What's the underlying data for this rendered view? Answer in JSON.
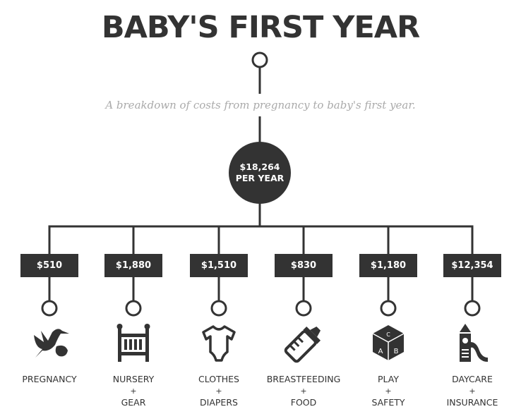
{
  "title": "BABY'S FIRST YEAR",
  "subtitle": "A breakdown of costs from pregnancy to baby's first year.",
  "total": {
    "amount": "$18,264",
    "period": "PER YEAR"
  },
  "colors": {
    "primary": "#333333",
    "subtitle": "#aaaaaa",
    "background": "#ffffff"
  },
  "categories": [
    {
      "amount": "$510",
      "line1": "PREGNANCY",
      "plus": "",
      "line2": "",
      "icon": "stork-icon"
    },
    {
      "amount": "$1,880",
      "line1": "NURSERY",
      "plus": "+",
      "line2": "GEAR",
      "icon": "crib-icon"
    },
    {
      "amount": "$1,510",
      "line1": "CLOTHES",
      "plus": "+",
      "line2": "DIAPERS",
      "icon": "onesie-icon"
    },
    {
      "amount": "$830",
      "line1": "BREASTFEEDING",
      "plus": "+",
      "line2": "FOOD",
      "icon": "baby-bottle-icon"
    },
    {
      "amount": "$1,180",
      "line1": "PLAY",
      "plus": "+",
      "line2": "SAFETY",
      "icon": "abc-block-icon"
    },
    {
      "amount": "$12,354",
      "line1": "DAYCARE",
      "plus": "+",
      "line2": "INSURANCE",
      "icon": "playground-slide-icon"
    }
  ]
}
